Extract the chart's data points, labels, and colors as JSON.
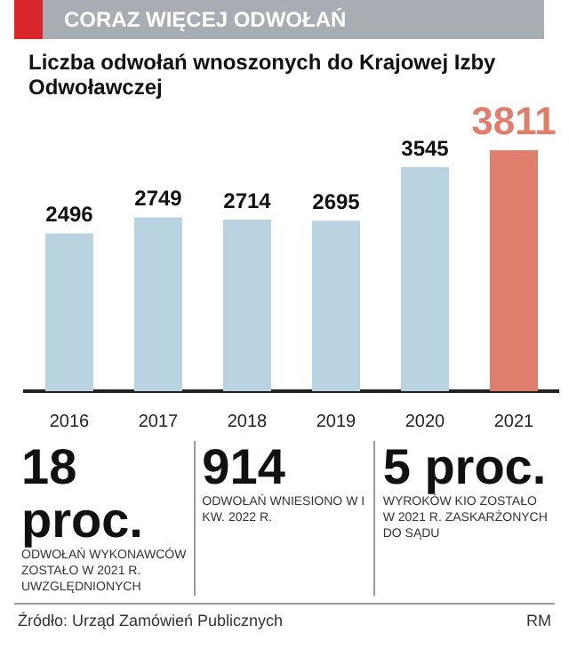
{
  "chart_data": {
    "type": "bar",
    "title": "CORAZ WIĘCEJ ODWOŁAŃ",
    "subtitle": "Liczba odwołań wnoszonych do Krajowej Izby Odwoławczej",
    "categories": [
      "2016",
      "2017",
      "2018",
      "2019",
      "2020",
      "2021"
    ],
    "values": [
      2496,
      2749,
      2714,
      2695,
      3545,
      3811
    ],
    "colors": [
      "#b9d3e0",
      "#b9d3e0",
      "#b9d3e0",
      "#b9d3e0",
      "#b9d3e0",
      "#e07e6e"
    ],
    "data_labels": true,
    "relative": false,
    "annotations": [
      "18 proc.",
      "ODWOŁAŃ WYKONAWCÓW ZOSTAŁO W 2021 R. UWZGLĘDNIONYCH",
      "914",
      "ODWOŁAŃ WNIESIONO W I KW. 2022 R.",
      "5 proc.",
      "WYROKÓW KIO ZOSTAŁO W 2021 R. ZASKARŻONYCH DO SĄDU",
      "Źródło: Urząd Zamówień Publicznych",
      "RM"
    ]
  }
}
